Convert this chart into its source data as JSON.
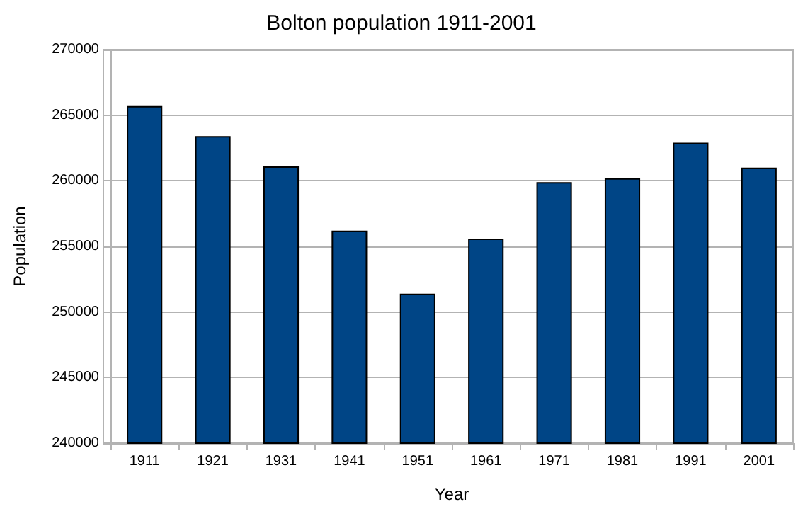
{
  "chart_data": {
    "type": "bar",
    "title": "Bolton population 1911-2001",
    "xlabel": "Year",
    "ylabel": "Population",
    "categories": [
      "1911",
      "1921",
      "1931",
      "1941",
      "1951",
      "1961",
      "1971",
      "1981",
      "1991",
      "2001"
    ],
    "values": [
      265700,
      263400,
      261100,
      256200,
      251400,
      255600,
      259900,
      260200,
      262900,
      261000
    ],
    "color": "#004586",
    "ylim": [
      240000,
      270000
    ],
    "yticks": [
      240000,
      245000,
      250000,
      255000,
      260000,
      265000,
      270000
    ],
    "grid": "y"
  }
}
